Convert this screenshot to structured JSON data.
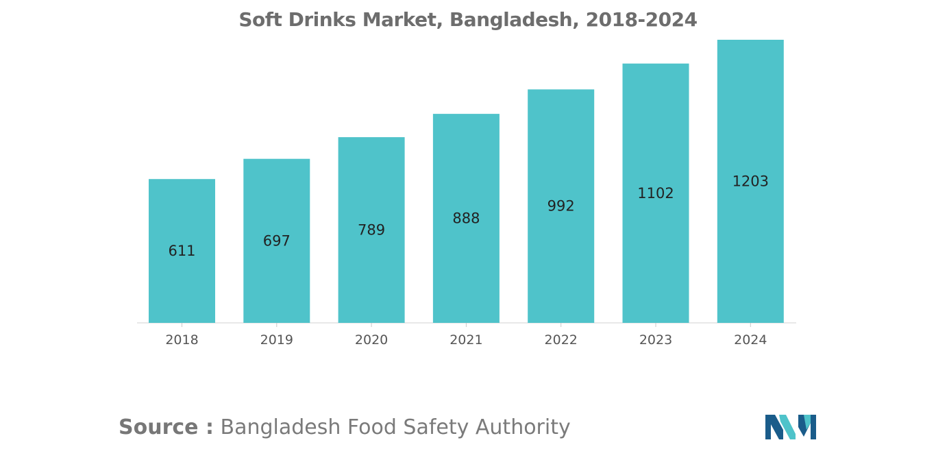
{
  "chart_data": {
    "type": "bar",
    "title": "Soft Drinks Market, Bangladesh, 2018-2024",
    "categories": [
      "2018",
      "2019",
      "2020",
      "2021",
      "2022",
      "2023",
      "2024"
    ],
    "values": [
      611,
      697,
      789,
      888,
      992,
      1102,
      1203
    ],
    "xlabel": "",
    "ylabel": "",
    "ylim": [
      0,
      1203
    ],
    "grid": false,
    "legend": "none",
    "bar_color": "#4fc3ca",
    "value_labels": "inside-bar"
  },
  "source": {
    "label": "Source :",
    "text": "Bangladesh Food Safety Authority"
  },
  "logo": {
    "icon": "mordor-intelligence-logo-icon",
    "colors": [
      "#1a5c8a",
      "#4fc3ca"
    ]
  }
}
